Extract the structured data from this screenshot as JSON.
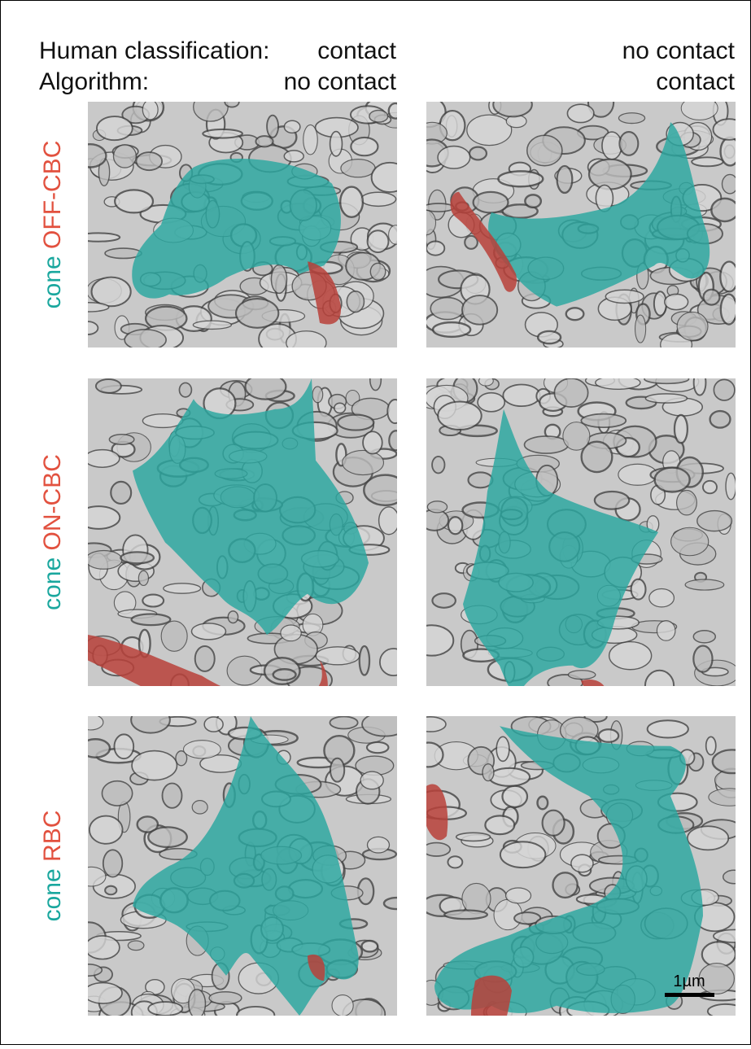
{
  "header": {
    "human_label": "Human classification:",
    "human_left": "contact",
    "human_right": "no contact",
    "algo_label": "Algorithm:",
    "algo_left": "no contact",
    "algo_right": "contact"
  },
  "rows": [
    {
      "cell": "cone",
      "partner": "OFF-CBC"
    },
    {
      "cell": "cone",
      "partner": "ON-CBC"
    },
    {
      "cell": "cone",
      "partner": "RBC"
    }
  ],
  "scale_bar": "1µm"
}
